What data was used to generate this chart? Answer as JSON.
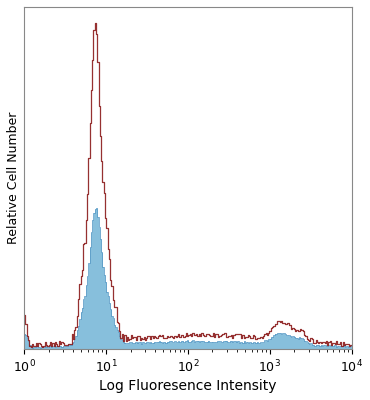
{
  "xlabel": "Log Fluoresence Intensity",
  "ylabel": "Relative Cell Number",
  "xlim": [
    1,
    10000
  ],
  "ylim": [
    0,
    1.05
  ],
  "bg_color": "#ffffff",
  "blue_fill_color": "#7ab8d9",
  "red_line_color": "#8b1a1a",
  "blue_edge_color": "#4a90c0",
  "dark_line_color": "#222222",
  "xlabel_fontsize": 10,
  "ylabel_fontsize": 9,
  "tick_fontsize": 9,
  "fig_width": 3.7,
  "fig_height": 4.0,
  "dpi": 100,
  "n_bins": 256
}
